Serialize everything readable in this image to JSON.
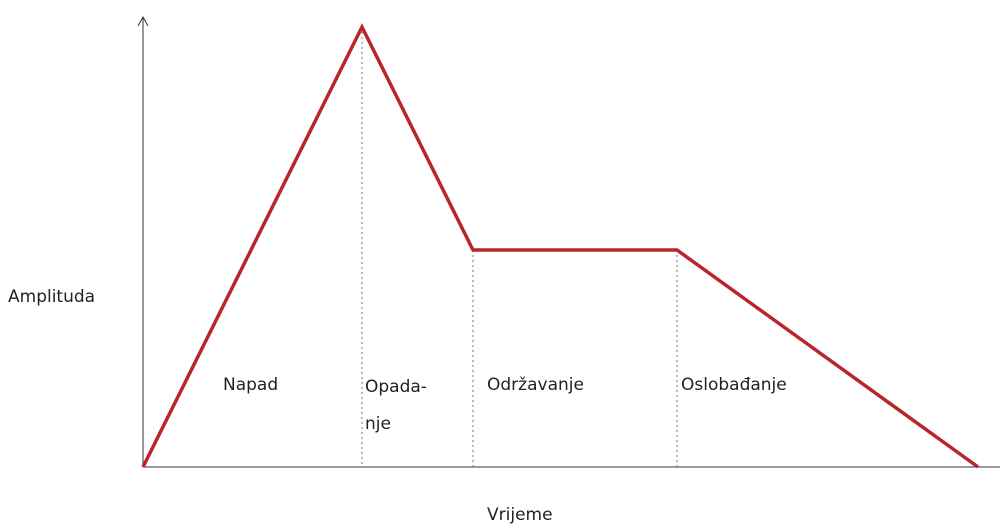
{
  "axes": {
    "y_label": "Amplituda",
    "x_label": "Vrijeme"
  },
  "phases": [
    {
      "lines": [
        "Napad"
      ]
    },
    {
      "lines": [
        "Opada-",
        "nje"
      ]
    },
    {
      "lines": [
        "Održavanje"
      ]
    },
    {
      "lines": [
        "Oslobađanje"
      ]
    }
  ]
}
